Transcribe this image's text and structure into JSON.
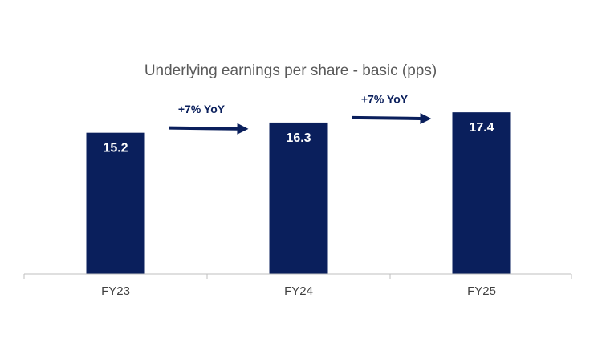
{
  "chart_data": {
    "type": "bar",
    "title": "Underlying earnings per share - basic (pps)",
    "categories": [
      "FY23",
      "FY24",
      "FY25"
    ],
    "values": [
      15.2,
      16.3,
      17.4
    ],
    "data_labels": [
      "15.2",
      "16.3",
      "17.4"
    ],
    "ylim": [
      0,
      20
    ],
    "grid": false,
    "legend": "none",
    "annotations": [
      {
        "text": "+7% YoY",
        "from": "FY23",
        "to": "FY24"
      },
      {
        "text": "+7% YoY",
        "from": "FY24",
        "to": "FY25"
      }
    ],
    "colors": {
      "bar": "#0a1f5c",
      "arrow": "#0a1f5c",
      "axis": "#bfbfbf"
    }
  }
}
